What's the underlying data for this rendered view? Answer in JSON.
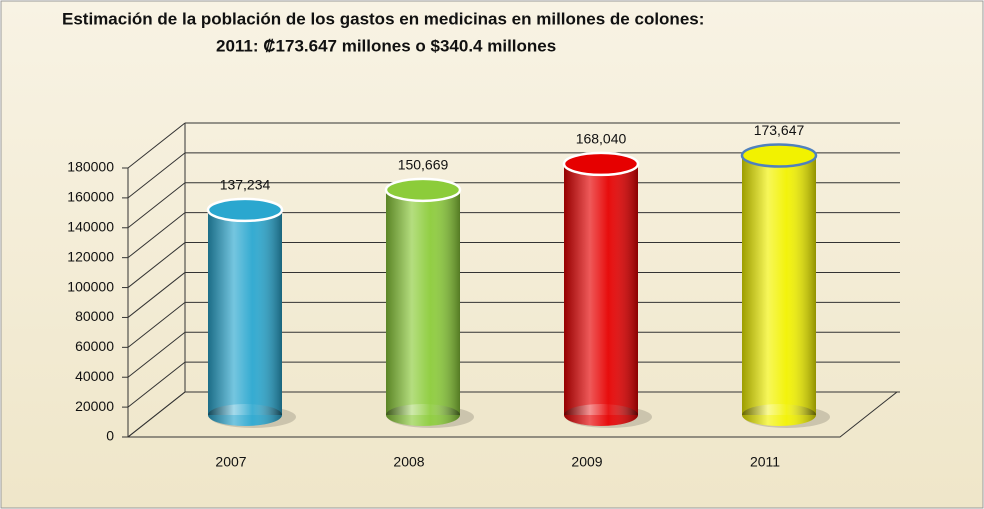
{
  "chart_data": {
    "type": "bar",
    "title": "Estimación  de la población de los gastos en medicinas en millones de colones:",
    "subtitle": "2011:  ₡173.647 millones o $340.4 millones",
    "categories": [
      "2007",
      "2008",
      "2009",
      "2011"
    ],
    "values": [
      137234,
      150669,
      168040,
      173647
    ],
    "value_labels": [
      "137,234",
      "150,669",
      "168,040",
      "173,647"
    ],
    "colors": [
      "#2aa7cf",
      "#8ccc3a",
      "#e60000",
      "#f2f200"
    ],
    "ylim": [
      0,
      180000
    ],
    "yticks": [
      0,
      20000,
      40000,
      60000,
      80000,
      100000,
      120000,
      140000,
      160000,
      180000
    ],
    "grid": true
  }
}
